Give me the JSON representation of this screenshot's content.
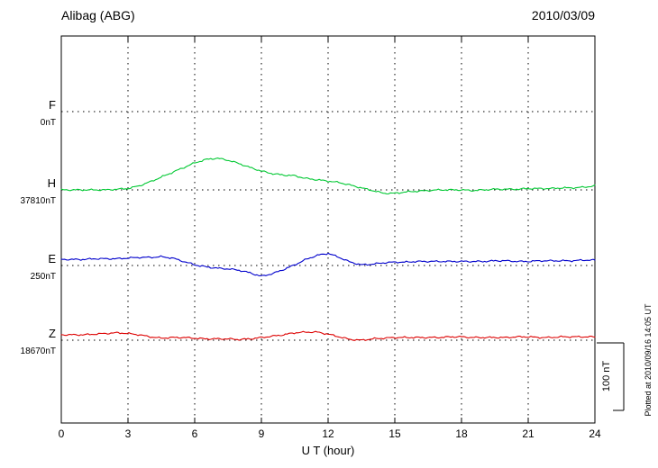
{
  "header": {
    "station": "Alibag (ABG)",
    "date": "2010/03/09"
  },
  "axis": {
    "xlabel": "U T (hour)",
    "x_ticks": [
      0,
      3,
      6,
      9,
      12,
      15,
      18,
      21,
      24
    ]
  },
  "scale_bar": {
    "label": "100 nT",
    "nT": 100
  },
  "footer": {
    "note": "Plotted at 2010/09/16 14:05 UT"
  },
  "chart_data": {
    "type": "line",
    "title": "Alibag (ABG) magnetogram",
    "date": "2010/03/09",
    "xlabel": "U T (hour)",
    "xlim": [
      0,
      24
    ],
    "x_ticks": [
      0,
      3,
      6,
      9,
      12,
      15,
      18,
      21,
      24
    ],
    "scale_bar_nT": 100,
    "grid": "dotted horizontal baselines per component and dotted verticals every 3 hours",
    "series": [
      {
        "name": "F",
        "color": "#FFA500",
        "baseline_label": "0nT",
        "x": [],
        "offset_nT": []
      },
      {
        "name": "H",
        "color": "#00C832",
        "baseline_label": "37810nT",
        "x": [
          0,
          0.5,
          1,
          1.5,
          2,
          2.5,
          3,
          3.5,
          4,
          4.5,
          5,
          5.5,
          6,
          6.5,
          7,
          7.5,
          8,
          8.5,
          9,
          9.5,
          10,
          10.5,
          11,
          11.5,
          12,
          12.5,
          13,
          13.5,
          14,
          14.5,
          15,
          15.5,
          16,
          16.5,
          17,
          17.5,
          18,
          18.5,
          19,
          19.5,
          20,
          20.5,
          21,
          21.5,
          22,
          22.5,
          23,
          23.5,
          24
        ],
        "offset_nT": [
          0,
          0,
          0,
          0,
          0,
          1,
          2,
          6,
          12,
          19,
          26,
          33,
          40,
          45,
          47,
          44,
          39,
          33,
          28,
          24,
          22,
          21,
          17,
          15,
          13,
          11,
          7,
          3,
          -1,
          -5,
          -5,
          -3,
          -2,
          -1,
          0,
          0,
          0,
          -1,
          0,
          1,
          1,
          1,
          2,
          2,
          2,
          3,
          3,
          4,
          6
        ]
      },
      {
        "name": "E",
        "color": "#0000CC",
        "baseline_label": "250nT",
        "x": [
          0,
          0.5,
          1,
          1.5,
          2,
          2.5,
          3,
          3.5,
          4,
          4.5,
          5,
          5.5,
          6,
          6.5,
          7,
          7.5,
          8,
          8.5,
          9,
          9.5,
          10,
          10.5,
          11,
          11.5,
          12,
          12.5,
          13,
          13.5,
          14,
          14.5,
          15,
          15.5,
          16,
          16.5,
          17,
          17.5,
          18,
          18.5,
          19,
          19.5,
          20,
          20.5,
          21,
          21.5,
          22,
          22.5,
          23,
          23.5,
          24
        ],
        "offset_nT": [
          9,
          9,
          9,
          10,
          10,
          10,
          11,
          12,
          12,
          13,
          11,
          6,
          1,
          -2,
          -4,
          -5,
          -7,
          -11,
          -16,
          -12,
          -6,
          1,
          9,
          15,
          18,
          12,
          5,
          1,
          2,
          4,
          5,
          5,
          6,
          6,
          6,
          6,
          6,
          6,
          6,
          7,
          7,
          6,
          6,
          7,
          7,
          7,
          7,
          8,
          8
        ]
      },
      {
        "name": "Z",
        "color": "#DD0000",
        "baseline_label": "18670nT",
        "x": [
          0,
          0.5,
          1,
          1.5,
          2,
          2.5,
          3,
          3.5,
          4,
          4.5,
          5,
          5.5,
          6,
          6.5,
          7,
          7.5,
          8,
          8.5,
          9,
          9.5,
          10,
          10.5,
          11,
          11.5,
          12,
          12.5,
          13,
          13.5,
          14,
          14.5,
          15,
          15.5,
          16,
          16.5,
          17,
          17.5,
          18,
          18.5,
          19,
          19.5,
          20,
          20.5,
          21,
          21.5,
          22,
          22.5,
          23,
          23.5,
          24
        ],
        "offset_nT": [
          8,
          8,
          8,
          9,
          10,
          11,
          10,
          8,
          5,
          3,
          4,
          4,
          3,
          2,
          2,
          2,
          1,
          2,
          4,
          6,
          8,
          11,
          12,
          12,
          9,
          5,
          1,
          0,
          2,
          3,
          4,
          4,
          4,
          4,
          4,
          5,
          5,
          4,
          4,
          4,
          4,
          5,
          5,
          4,
          4,
          5,
          5,
          5,
          5
        ]
      }
    ]
  }
}
